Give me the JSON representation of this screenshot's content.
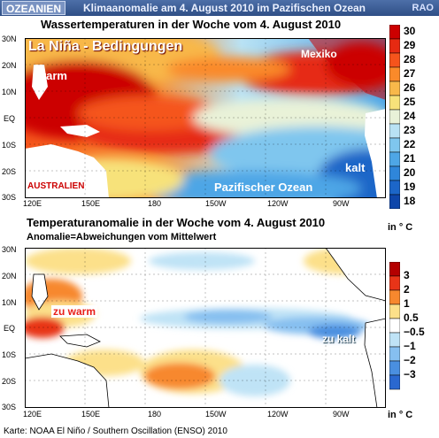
{
  "header": {
    "badge": "OZEANIEN",
    "title": "Klimaanomalie am 4. August 2010 im Pazifischen Ozean",
    "brand": "RAO"
  },
  "panel1": {
    "title": "Wassertemperaturen in der Woche vom 4. August 2010",
    "overlay": {
      "la_nina": "La Niña - Bedingungen",
      "warm": "warm",
      "mexiko": "Mexiko",
      "kalt": "kalt",
      "australien": "AUSTRALIEN",
      "pazifik": "Pazifischer Ozean"
    },
    "lat_labels": [
      "30N",
      "20N",
      "10N",
      "EQ",
      "10S",
      "20S",
      "30S"
    ],
    "lon_labels": [
      "120E",
      "150E",
      "180",
      "150W",
      "120W",
      "90W"
    ],
    "legend": {
      "values": [
        "30",
        "29",
        "28",
        "27",
        "26",
        "25",
        "24",
        "23",
        "22",
        "21",
        "20",
        "19",
        "18"
      ],
      "colors": [
        "#cc0000",
        "#e62a12",
        "#f5541c",
        "#fa8a2a",
        "#f8b84a",
        "#f7e27a",
        "#e9f2d8",
        "#b9e2f4",
        "#7fc6ee",
        "#4ea6e6",
        "#2f86da",
        "#1c66c8",
        "#0e46aa"
      ],
      "unit": "in ° C"
    }
  },
  "panel2": {
    "title": "Temperaturanomalie in der Woche vom 4. August 2010",
    "subtitle": "Anomalie=Abweichungen vom Mittelwert",
    "overlay": {
      "zu_warm": "zu warm",
      "zu_kalt": "zu kalt"
    },
    "lat_labels": [
      "30N",
      "20N",
      "10N",
      "EQ",
      "10S",
      "20S",
      "30S"
    ],
    "lon_labels": [
      "120E",
      "150E",
      "180",
      "150W",
      "120W",
      "90W"
    ],
    "legend": {
      "values": [
        "3",
        "2",
        "1",
        "0.5",
        "−0.5",
        "−1",
        "−2",
        "−3"
      ],
      "colors": [
        "#b40000",
        "#e83418",
        "#f7882e",
        "#fce08a",
        "#ffffff",
        "#bfe3f6",
        "#86bff0",
        "#4a8fe0",
        "#2a68d0"
      ],
      "unit": "in ° C"
    }
  },
  "source": "Karte: NOAA El Niño / Southern Oscillation (ENSO) 2010",
  "colors": {
    "header_bg": "#3a5a94",
    "overlay_white": "#ffffff",
    "overlay_red": "#e8201a",
    "land": "#ffffff"
  }
}
